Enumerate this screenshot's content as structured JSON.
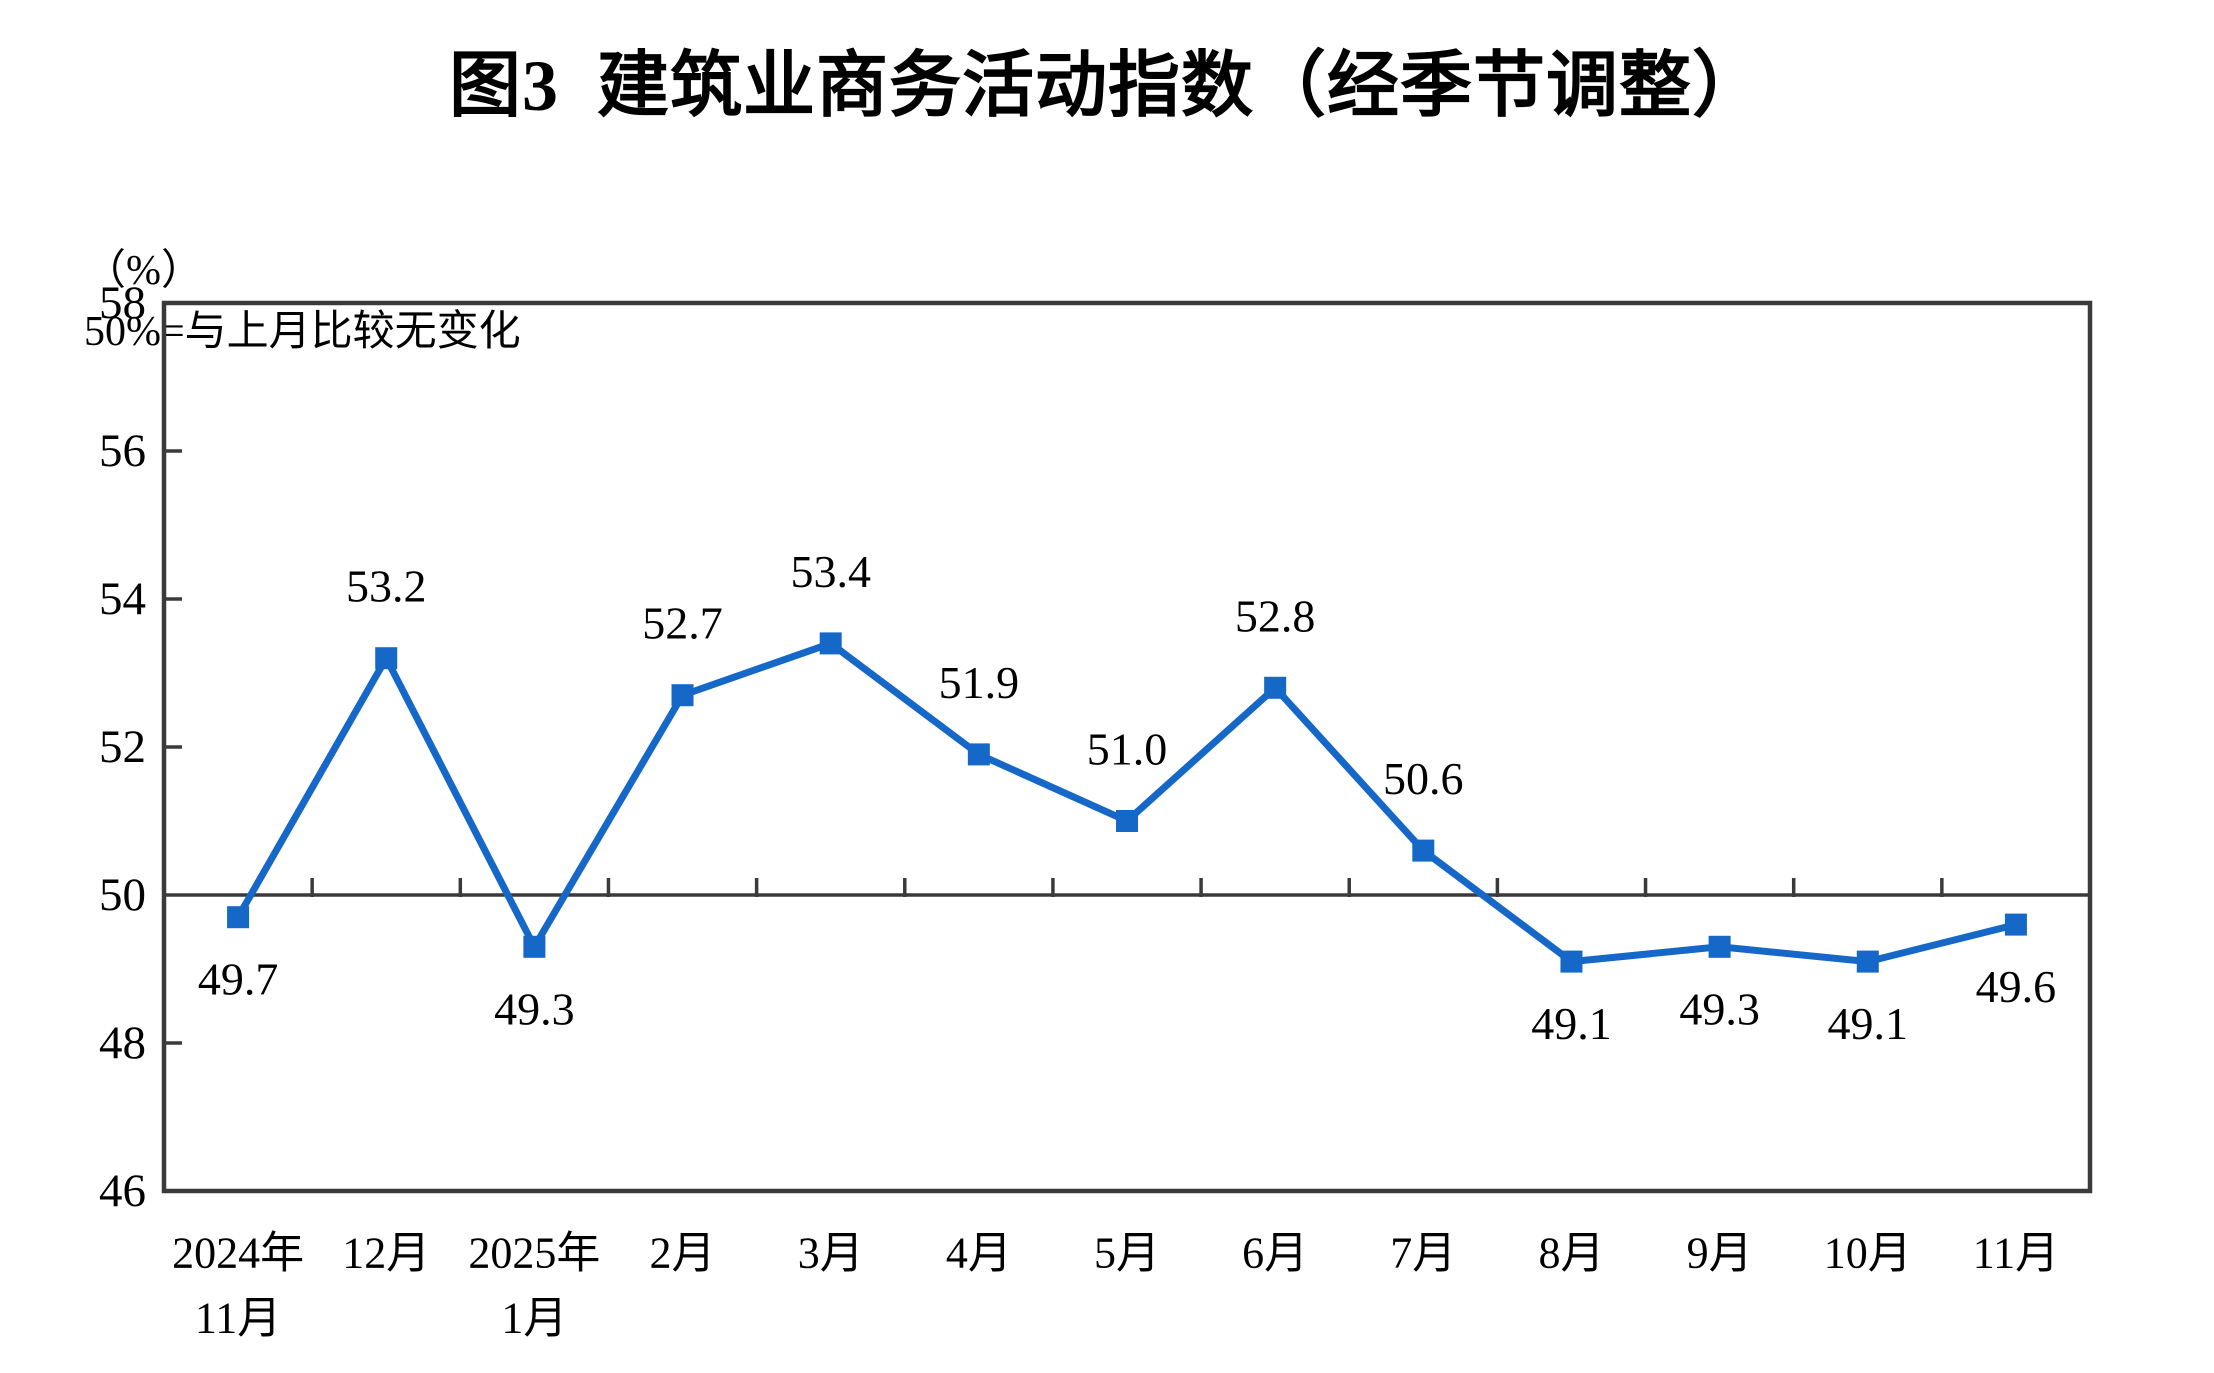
{
  "chart_data": {
    "type": "line",
    "title": "图3  建筑业商务活动指数（经季节调整）",
    "unit_label": "（%）",
    "note": "50%=与上月比较无变化",
    "categories": [
      [
        "2024年",
        "11月"
      ],
      [
        "12月"
      ],
      [
        "2025年",
        "1月"
      ],
      [
        "2月"
      ],
      [
        "3月"
      ],
      [
        "4月"
      ],
      [
        "5月"
      ],
      [
        "6月"
      ],
      [
        "7月"
      ],
      [
        "8月"
      ],
      [
        "9月"
      ],
      [
        "10月"
      ],
      [
        "11月"
      ]
    ],
    "values": [
      49.7,
      53.2,
      49.3,
      52.7,
      53.4,
      51.9,
      51.0,
      52.8,
      50.6,
      49.1,
      49.3,
      49.1,
      49.6
    ],
    "labels": [
      "49.7",
      "53.2",
      "49.3",
      "52.7",
      "53.4",
      "51.9",
      "51.0",
      "52.8",
      "50.6",
      "49.1",
      "49.3",
      "49.1",
      "49.6"
    ],
    "label_positions": [
      "below",
      "above",
      "below",
      "above",
      "above",
      "above",
      "above",
      "above",
      "above",
      "below",
      "below",
      "below",
      "below"
    ],
    "ylim": [
      46,
      58
    ],
    "yticks": [
      46,
      48,
      50,
      52,
      54,
      56,
      58
    ],
    "reference_value": 50,
    "grid": false,
    "legend_position": "none",
    "line_color": "#1567C8",
    "marker": "square",
    "axis_color": "#3A3A3A",
    "text_color": "#000000"
  }
}
